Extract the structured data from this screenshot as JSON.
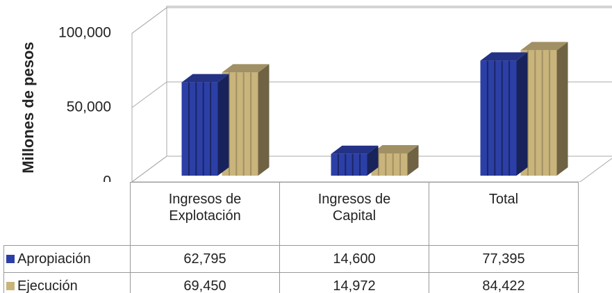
{
  "chart_data": {
    "type": "bar3d",
    "y_label": "Millones de pesos",
    "categories": [
      "Ingresos de Explotación",
      "Ingresos de Capital",
      "Total"
    ],
    "series": [
      {
        "name": "Apropiación",
        "color": "#2c3fa6",
        "values": [
          62795,
          14600,
          77395
        ],
        "value_labels": [
          "62,795",
          "14,600",
          "77,395"
        ]
      },
      {
        "name": "Ejecución",
        "color": "#c9b47c",
        "values": [
          69450,
          14972,
          84422
        ],
        "value_labels": [
          "69,450",
          "14,972",
          "84,422"
        ]
      }
    ],
    "ylim": [
      0,
      100000
    ],
    "yticks": [
      0,
      {
        "value": 50000,
        "label": "50,000"
      },
      {
        "value": 100000,
        "label": "100,000"
      }
    ],
    "grid": true
  }
}
